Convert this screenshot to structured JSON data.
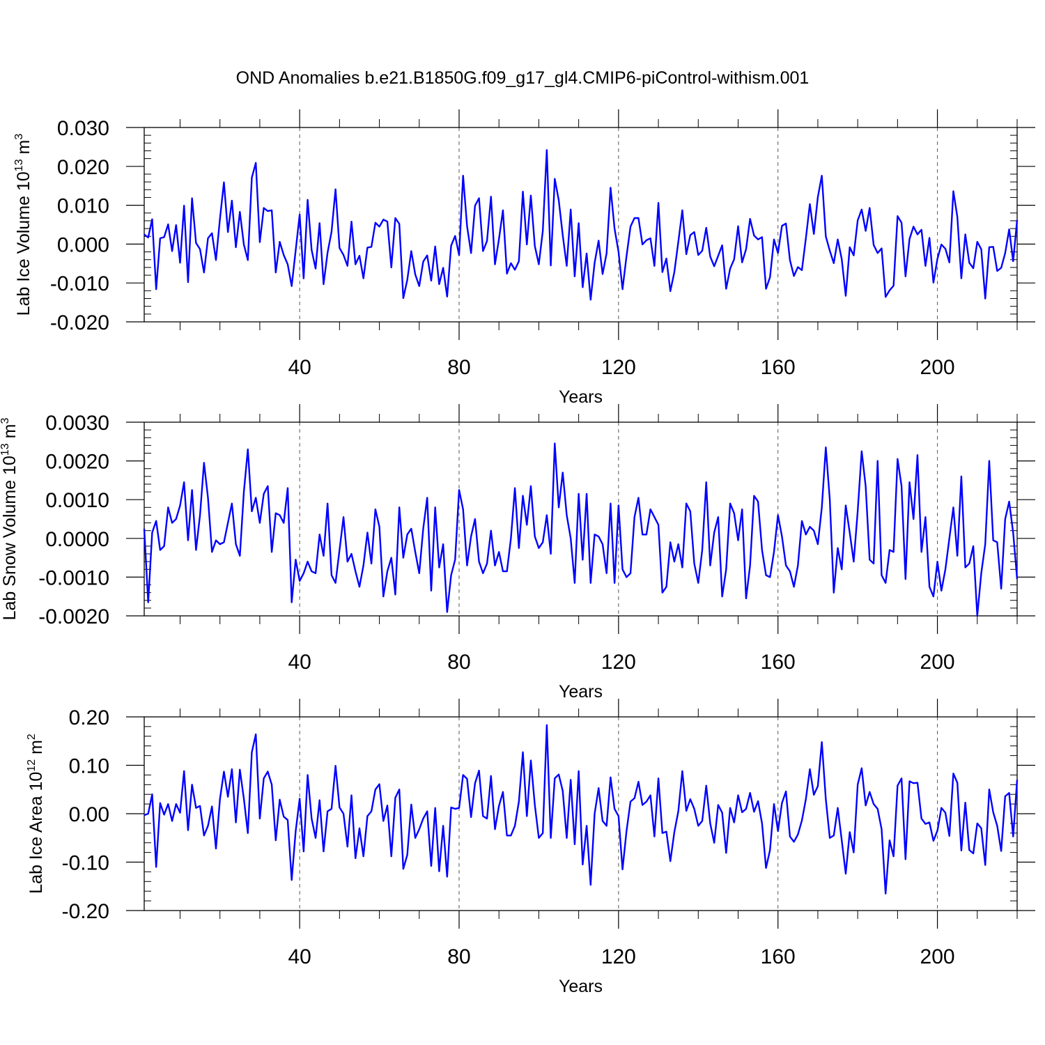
{
  "title": "OND Anomalies b.e21.B1850G.f09_g17_gl4.CMIP6-piControl-withism.001",
  "colors": {
    "series": "#0000ff",
    "axes": "#000000",
    "grid": "#555555"
  },
  "chart_data": [
    {
      "type": "line",
      "name": "ice-volume",
      "ylabel": {
        "prefix": "Lab Ice Volume 10",
        "exponent": "13",
        "unit": " m",
        "unit_power": "3"
      },
      "xlabel": "Years",
      "xlim": [
        1,
        220
      ],
      "ylim": [
        -0.02,
        0.03
      ],
      "yticks": [
        -0.02,
        -0.01,
        0.0,
        0.01,
        0.02,
        0.03
      ],
      "ytick_labels": [
        "-0.020",
        "-0.010",
        "0.000",
        "0.010",
        "0.020",
        "0.030"
      ],
      "ytick_decimals": 3,
      "xticks": [
        40,
        80,
        120,
        160,
        200
      ],
      "xtick_labels": [
        "40",
        "80",
        "120",
        "160",
        "200"
      ],
      "grid_x": [
        40,
        80,
        120,
        160,
        200
      ],
      "values": [
        0.0025,
        0.0017,
        0.0064,
        -0.0116,
        0.0015,
        0.0018,
        0.0051,
        -0.0018,
        0.0049,
        -0.0048,
        0.0099,
        -0.0098,
        0.0118,
        0.0003,
        -0.0013,
        -0.0073,
        0.0015,
        0.0028,
        -0.0041,
        0.0065,
        0.0159,
        0.0031,
        0.0112,
        -0.0008,
        0.0083,
        -0.0001,
        -0.0041,
        0.0171,
        0.0209,
        0.0005,
        0.0093,
        0.0085,
        0.0087,
        -0.0073,
        0.0006,
        -0.0028,
        -0.0052,
        -0.0108,
        -0.0016,
        0.0076,
        -0.0088,
        0.0114,
        -0.0015,
        -0.0063,
        0.0054,
        -0.0103,
        -0.0022,
        0.0032,
        0.0141,
        -0.001,
        -0.0028,
        -0.0056,
        0.0058,
        -0.0052,
        -0.003,
        -0.0088,
        -0.0009,
        -0.0007,
        0.0055,
        0.0045,
        0.0063,
        0.0058,
        -0.006,
        0.0067,
        0.0052,
        -0.0139,
        -0.0092,
        -0.0018,
        -0.0078,
        -0.0108,
        -0.0045,
        -0.0029,
        -0.0094,
        -0.0006,
        -0.0103,
        -0.0061,
        -0.0135,
        -0.0004,
        0.0021,
        -0.0028,
        0.0176,
        0.0046,
        -0.0023,
        0.0099,
        0.0118,
        -0.0018,
        0.0008,
        0.0122,
        -0.0052,
        0.0013,
        0.0087,
        -0.0076,
        -0.0049,
        -0.0066,
        -0.0044,
        0.0135,
        -0.0001,
        0.0125,
        -0.0005,
        -0.0052,
        0.0034,
        0.0242,
        -0.0055,
        0.0168,
        0.0113,
        0.0023,
        -0.0056,
        0.0089,
        -0.0083,
        0.0054,
        -0.0111,
        -0.0024,
        -0.0143,
        -0.0048,
        0.0009,
        -0.0077,
        -0.0024,
        0.0145,
        0.004,
        -0.002,
        -0.0116,
        -0.0031,
        0.0045,
        0.0067,
        0.0067,
        -0.0001,
        0.001,
        0.0015,
        -0.0056,
        0.0106,
        -0.0072,
        -0.0037,
        -0.0121,
        -0.0072,
        0.0006,
        0.0087,
        -0.0026,
        0.0023,
        0.0031,
        -0.0028,
        -0.0017,
        0.0042,
        -0.0032,
        -0.0057,
        -0.003,
        -0.0003,
        -0.0115,
        -0.0063,
        -0.0039,
        0.0046,
        -0.0047,
        -0.0013,
        0.0065,
        0.0022,
        0.0012,
        0.0018,
        -0.0115,
        -0.0085,
        0.0012,
        -0.0023,
        0.0047,
        0.0053,
        -0.0041,
        -0.0082,
        -0.0059,
        -0.0067,
        0.0015,
        0.0103,
        0.0026,
        0.0121,
        0.0176,
        0.002,
        -0.0017,
        -0.0049,
        0.0012,
        -0.0039,
        -0.0133,
        -0.0008,
        -0.0029,
        0.0061,
        0.0089,
        0.0034,
        0.0093,
        -0.0002,
        -0.0023,
        -0.0011,
        -0.0136,
        -0.0119,
        -0.0107,
        0.0072,
        0.0055,
        -0.0083,
        0.0013,
        0.0045,
        0.0025,
        0.0037,
        -0.0056,
        0.0016,
        -0.0099,
        -0.0038,
        -0.0001,
        -0.0012,
        -0.0047,
        0.0136,
        0.007,
        -0.0088,
        0.0025,
        -0.0048,
        -0.0062,
        0.0006,
        -0.0013,
        -0.014,
        -0.0008,
        -0.0007,
        -0.0069,
        -0.0061,
        -0.0023,
        0.0038,
        -0.0044,
        0.0062
      ]
    },
    {
      "type": "line",
      "name": "snow-volume",
      "ylabel": {
        "prefix": "Lab Snow Volume 10",
        "exponent": "13",
        "unit": " m",
        "unit_power": "3"
      },
      "xlabel": "Years",
      "xlim": [
        1,
        220
      ],
      "ylim": [
        -0.002,
        0.003
      ],
      "yticks": [
        -0.002,
        -0.001,
        0.0,
        0.001,
        0.002,
        0.003
      ],
      "ytick_labels": [
        "-0.0020",
        "-0.0010",
        "0.0000",
        "0.0010",
        "0.0020",
        "0.0030"
      ],
      "ytick_decimals": 4,
      "xticks": [
        40,
        80,
        120,
        160,
        200
      ],
      "xtick_labels": [
        "40",
        "80",
        "120",
        "160",
        "200"
      ],
      "grid_x": [
        40,
        80,
        120,
        160,
        200
      ],
      "values": [
        0.00025,
        -0.00165,
        0.00015,
        0.00045,
        -0.0003,
        -0.0002,
        0.0008,
        0.0004,
        0.0005,
        0.00085,
        0.00145,
        -5e-05,
        0.00125,
        -0.0003,
        0.0006,
        0.00195,
        0.00105,
        -0.00035,
        -5e-05,
        -0.00015,
        -0.0001,
        0.0004,
        0.0009,
        -0.00015,
        -0.00045,
        0.0012,
        0.0023,
        0.0007,
        0.00105,
        0.0004,
        0.00115,
        0.00135,
        -0.00035,
        0.00065,
        0.0006,
        0.0004,
        0.0013,
        -0.00165,
        -0.00055,
        -0.0011,
        -0.0009,
        -0.0006,
        -0.00085,
        -0.0009,
        0.0001,
        -0.00045,
        0.0009,
        -0.00095,
        -0.00115,
        -0.0003,
        0.00055,
        -0.0006,
        -0.0004,
        -0.00085,
        -0.00125,
        -0.0007,
        0.00015,
        -0.00065,
        0.00075,
        0.0003,
        -0.0015,
        -0.00085,
        -0.0005,
        -0.00145,
        0.0008,
        -0.0005,
        0.0001,
        0.00025,
        -0.00035,
        -0.0009,
        0.00025,
        0.00105,
        -0.00135,
        0.0008,
        -0.00075,
        -0.00015,
        -0.0019,
        -0.00095,
        -0.00055,
        0.00125,
        0.00075,
        -0.0007,
        5e-05,
        0.0005,
        -0.0006,
        -0.0009,
        -0.00065,
        0.0002,
        -0.0007,
        -0.00035,
        -0.00085,
        -0.00085,
        0.0,
        0.0013,
        -0.00025,
        0.0011,
        0.00035,
        0.00135,
        5e-05,
        -0.00025,
        -0.0001,
        0.0006,
        -0.0004,
        0.00245,
        0.0008,
        0.0017,
        0.0006,
        0.0,
        -0.00115,
        0.00115,
        -0.00055,
        0.00115,
        -0.00115,
        0.0001,
        5e-05,
        -0.00015,
        -0.0009,
        0.0009,
        -0.00115,
        0.00085,
        -0.0008,
        -0.001,
        -0.0009,
        0.00055,
        0.00105,
        0.0001,
        0.0001,
        0.00075,
        0.00055,
        0.00035,
        -0.0014,
        -0.00125,
        -0.0001,
        -0.0006,
        -0.00015,
        -0.00075,
        0.0009,
        0.0007,
        -0.00065,
        -0.00115,
        -0.0003,
        0.00145,
        -0.0007,
        0.00015,
        0.00055,
        -0.0015,
        -0.0008,
        0.0009,
        0.00065,
        -5e-05,
        0.00075,
        -0.00155,
        -0.0007,
        0.0011,
        0.00095,
        -0.0003,
        -0.00095,
        -0.001,
        -0.00035,
        0.0006,
        5e-05,
        -0.0007,
        -0.00085,
        -0.00125,
        -0.0007,
        0.00045,
        0.0001,
        0.0003,
        0.0002,
        -0.00015,
        0.0008,
        0.00235,
        0.001,
        -0.0014,
        -0.00025,
        -0.0008,
        0.00085,
        0.00015,
        -0.0006,
        0.0007,
        0.00225,
        0.00135,
        -0.00055,
        -0.00065,
        0.002,
        -0.00095,
        -0.00115,
        -0.0003,
        -0.00035,
        0.00205,
        0.00135,
        -0.00105,
        0.00145,
        0.0005,
        0.00215,
        -0.00035,
        0.00055,
        -0.00125,
        -0.0015,
        -0.0006,
        -0.00135,
        -0.0008,
        0.0,
        0.0008,
        -0.00045,
        0.0016,
        -0.00075,
        -0.00065,
        -0.0002,
        -0.002,
        -0.0009,
        -0.00015,
        0.002,
        -5e-05,
        -0.0001,
        -0.0013,
        0.0005,
        0.00095,
        0.00015,
        -0.00105
      ]
    },
    {
      "type": "line",
      "name": "ice-area",
      "ylabel": {
        "prefix": "Lab Ice Area 10",
        "exponent": "12",
        "unit": " m",
        "unit_power": "2"
      },
      "xlabel": "Years",
      "xlim": [
        1,
        220
      ],
      "ylim": [
        -0.2,
        0.2
      ],
      "yticks": [
        -0.2,
        -0.1,
        0.0,
        0.1,
        0.2
      ],
      "ytick_labels": [
        "-0.20",
        "-0.10",
        "0.00",
        "0.10",
        "0.20"
      ],
      "ytick_decimals": 2,
      "xticks": [
        40,
        80,
        120,
        160,
        200
      ],
      "xtick_labels": [
        "40",
        "80",
        "120",
        "160",
        "200"
      ],
      "grid_x": [
        40,
        80,
        120,
        160,
        200
      ],
      "values": [
        -0.003,
        0.0,
        0.04,
        -0.11,
        0.022,
        -0.002,
        0.02,
        -0.015,
        0.02,
        0.002,
        0.088,
        -0.034,
        0.06,
        0.012,
        0.016,
        -0.045,
        -0.025,
        0.015,
        -0.072,
        0.03,
        0.087,
        0.035,
        0.092,
        -0.018,
        0.091,
        0.031,
        -0.04,
        0.127,
        0.164,
        -0.01,
        0.073,
        0.087,
        0.06,
        -0.055,
        0.029,
        -0.006,
        -0.013,
        -0.137,
        -0.036,
        0.031,
        -0.078,
        0.08,
        -0.01,
        -0.05,
        0.028,
        -0.078,
        0.005,
        0.01,
        0.099,
        0.013,
        0.0,
        -0.068,
        0.038,
        -0.092,
        -0.03,
        -0.088,
        -0.005,
        0.005,
        0.05,
        0.061,
        -0.015,
        0.017,
        -0.088,
        0.033,
        0.05,
        -0.114,
        -0.085,
        0.019,
        -0.05,
        -0.032,
        -0.01,
        0.005,
        -0.108,
        0.012,
        -0.119,
        -0.025,
        -0.13,
        0.013,
        0.01,
        0.012,
        0.08,
        0.072,
        -0.007,
        0.063,
        0.089,
        -0.005,
        -0.01,
        0.078,
        -0.032,
        0.016,
        0.045,
        -0.045,
        -0.045,
        -0.025,
        0.025,
        0.127,
        -0.005,
        0.11,
        0.018,
        -0.05,
        -0.04,
        0.183,
        -0.05,
        0.073,
        0.081,
        0.047,
        -0.05,
        0.07,
        -0.063,
        0.088,
        -0.105,
        -0.025,
        -0.147,
        0.0,
        0.053,
        -0.015,
        -0.025,
        0.075,
        0.01,
        -0.005,
        -0.115,
        -0.036,
        0.025,
        0.032,
        0.066,
        0.018,
        0.025,
        0.038,
        -0.047,
        0.073,
        -0.04,
        -0.037,
        -0.098,
        -0.038,
        0.005,
        0.088,
        0.006,
        0.03,
        0.01,
        -0.025,
        -0.015,
        0.058,
        -0.02,
        -0.06,
        0.018,
        0.002,
        -0.081,
        0.012,
        -0.018,
        0.038,
        0.003,
        0.01,
        0.043,
        0.004,
        0.026,
        -0.02,
        -0.112,
        -0.075,
        0.02,
        -0.036,
        0.022,
        0.046,
        -0.047,
        -0.058,
        -0.043,
        -0.014,
        0.03,
        0.092,
        0.039,
        0.057,
        0.148,
        0.03,
        -0.05,
        -0.045,
        0.012,
        -0.055,
        -0.124,
        -0.038,
        -0.08,
        0.06,
        0.094,
        0.017,
        0.045,
        0.02,
        0.01,
        -0.032,
        -0.165,
        -0.055,
        -0.088,
        0.058,
        0.073,
        -0.094,
        0.067,
        0.063,
        0.064,
        -0.01,
        -0.021,
        -0.018,
        -0.056,
        -0.035,
        0.012,
        0.002,
        -0.046,
        0.083,
        0.064,
        -0.076,
        0.023,
        -0.075,
        -0.082,
        -0.02,
        -0.03,
        -0.106,
        0.05,
        0.003,
        -0.025,
        -0.077,
        0.036,
        0.043,
        -0.047,
        0.07
      ]
    }
  ]
}
